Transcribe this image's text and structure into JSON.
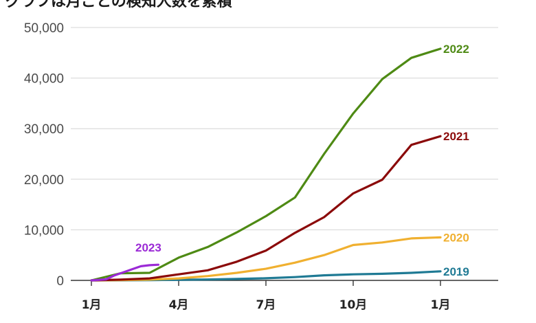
{
  "chart_data": {
    "type": "line",
    "title": "グラフは月ごとの検知人数を累積",
    "xlabel": "",
    "ylabel": "",
    "x_tick_labels": [
      "1月",
      "4月",
      "7月",
      "10月",
      "1月"
    ],
    "y_tick_labels": [
      "0",
      "10,000",
      "20,000",
      "30,000",
      "40,000",
      "50,000"
    ],
    "ylim": [
      0,
      50000
    ],
    "grid": "horizontal",
    "legend": "labels at line ends",
    "series": [
      {
        "name": "2019",
        "color": "#1f7a94",
        "x": [
          0,
          1,
          2,
          3,
          4,
          5,
          6,
          7,
          8,
          9,
          10,
          11,
          12
        ],
        "values": [
          0,
          20,
          60,
          120,
          180,
          280,
          420,
          650,
          1000,
          1200,
          1300,
          1500,
          1800
        ]
      },
      {
        "name": "2020",
        "color": "#f0b030",
        "x": [
          0,
          1,
          2,
          3,
          4,
          5,
          6,
          7,
          8,
          9,
          10,
          11,
          12
        ],
        "values": [
          0,
          60,
          150,
          400,
          850,
          1500,
          2300,
          3500,
          5000,
          7000,
          7500,
          8300,
          8500
        ]
      },
      {
        "name": "2021",
        "color": "#8b0a0a",
        "x": [
          0,
          1,
          2,
          3,
          4,
          5,
          6,
          7,
          8,
          9,
          10,
          11,
          12
        ],
        "values": [
          0,
          150,
          400,
          1200,
          2000,
          3700,
          5900,
          9400,
          12500,
          17200,
          19900,
          26800,
          28500
        ]
      },
      {
        "name": "2022",
        "color": "#4e8a14",
        "x": [
          0,
          1,
          2,
          3,
          4,
          5,
          6,
          7,
          8,
          9,
          10,
          11,
          12
        ],
        "values": [
          0,
          1400,
          1500,
          4500,
          6600,
          9500,
          12700,
          16400,
          25000,
          33000,
          39800,
          44000,
          45800
        ]
      },
      {
        "name": "2023",
        "color": "#9b2ad6",
        "x": [
          0,
          0.5,
          0.8,
          1.1,
          1.4,
          1.7,
          2.0,
          2.3
        ],
        "values": [
          0,
          200,
          1000,
          1600,
          2200,
          2800,
          3000,
          3100
        ]
      }
    ]
  }
}
